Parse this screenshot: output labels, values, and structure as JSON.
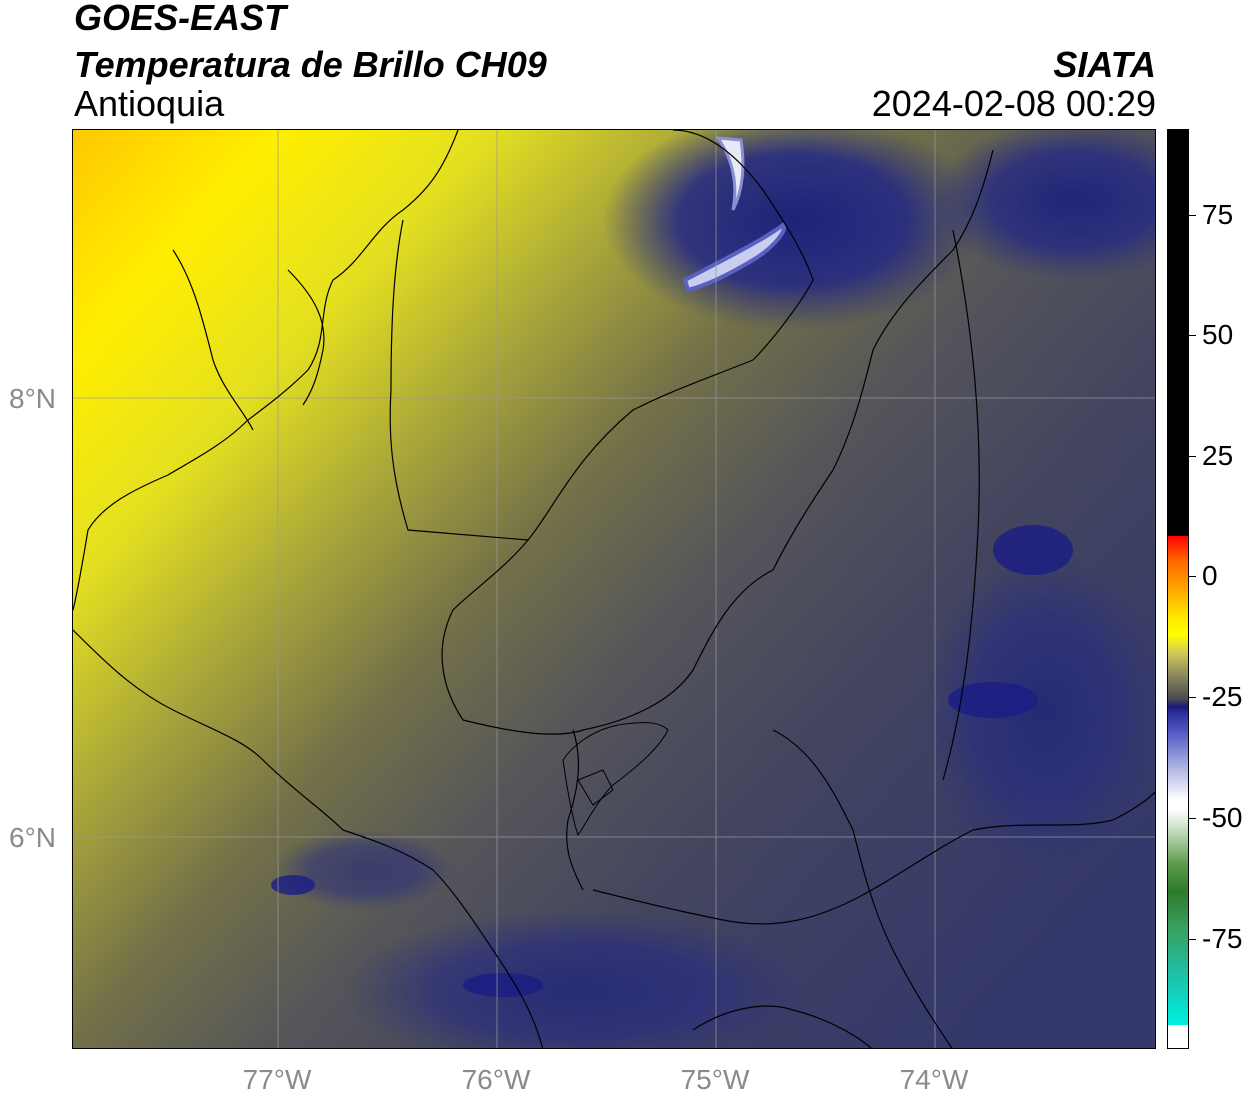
{
  "header": {
    "satellite": "GOES-EAST",
    "product": "Temperatura de Brillo CH09",
    "region": "Antioquia",
    "agency": "SIATA",
    "timestamp": "2024-02-08 00:29"
  },
  "axes": {
    "latitude_labels": [
      "8°N",
      "6°N"
    ],
    "longitude_labels": [
      "77°W",
      "76°W",
      "75°W",
      "74°W"
    ]
  },
  "colorbar": {
    "tick_labels": [
      "75",
      "50",
      "25",
      "0",
      "-25",
      "-50",
      "-75"
    ],
    "range": [
      -95,
      92
    ],
    "colors": {
      "warm_top": "#000000",
      "red": "#ff0000",
      "orange": "#ffa500",
      "yellow": "#ffff00",
      "olive": "#7a7a5a",
      "navy": "#1a1a78",
      "white": "#ffffff",
      "green": "#2e7a2e",
      "cyan": "#00f0e0"
    }
  },
  "map": {
    "colors": {
      "dry_yellow": "#ffff00",
      "dry_orange": "#ffd000",
      "mid_olive": "#8a8a3a",
      "gray": "#505058",
      "moist_navy": "#1e2278",
      "cold_white": "#e6e8f5",
      "borders": "#000000",
      "gridlines": "#9a9a9a"
    }
  }
}
